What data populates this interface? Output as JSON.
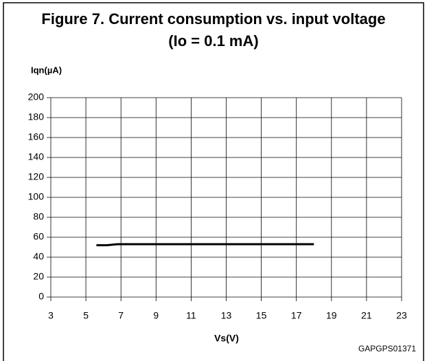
{
  "chart_data": {
    "type": "line",
    "title": "Figure 7. Current consumption vs. input voltage",
    "subtitle": "(Io = 0.1 mA)",
    "y_label": "Iqn(µA)",
    "x_label": "Vs(V)",
    "note": "GAPGPS01371",
    "x": [
      5.6,
      6.2,
      6.8,
      10,
      14,
      18
    ],
    "series": [
      {
        "color": "#000000",
        "values": [
          52,
          52,
          53,
          53,
          53,
          53
        ]
      }
    ],
    "xlim": [
      3,
      23
    ],
    "xticks": [
      3,
      5,
      7,
      9,
      11,
      13,
      15,
      17,
      19,
      21,
      23
    ],
    "ylim": [
      0,
      200
    ],
    "yticks": [
      0,
      20,
      40,
      60,
      80,
      100,
      120,
      140,
      160,
      180,
      200
    ],
    "grid": true
  }
}
